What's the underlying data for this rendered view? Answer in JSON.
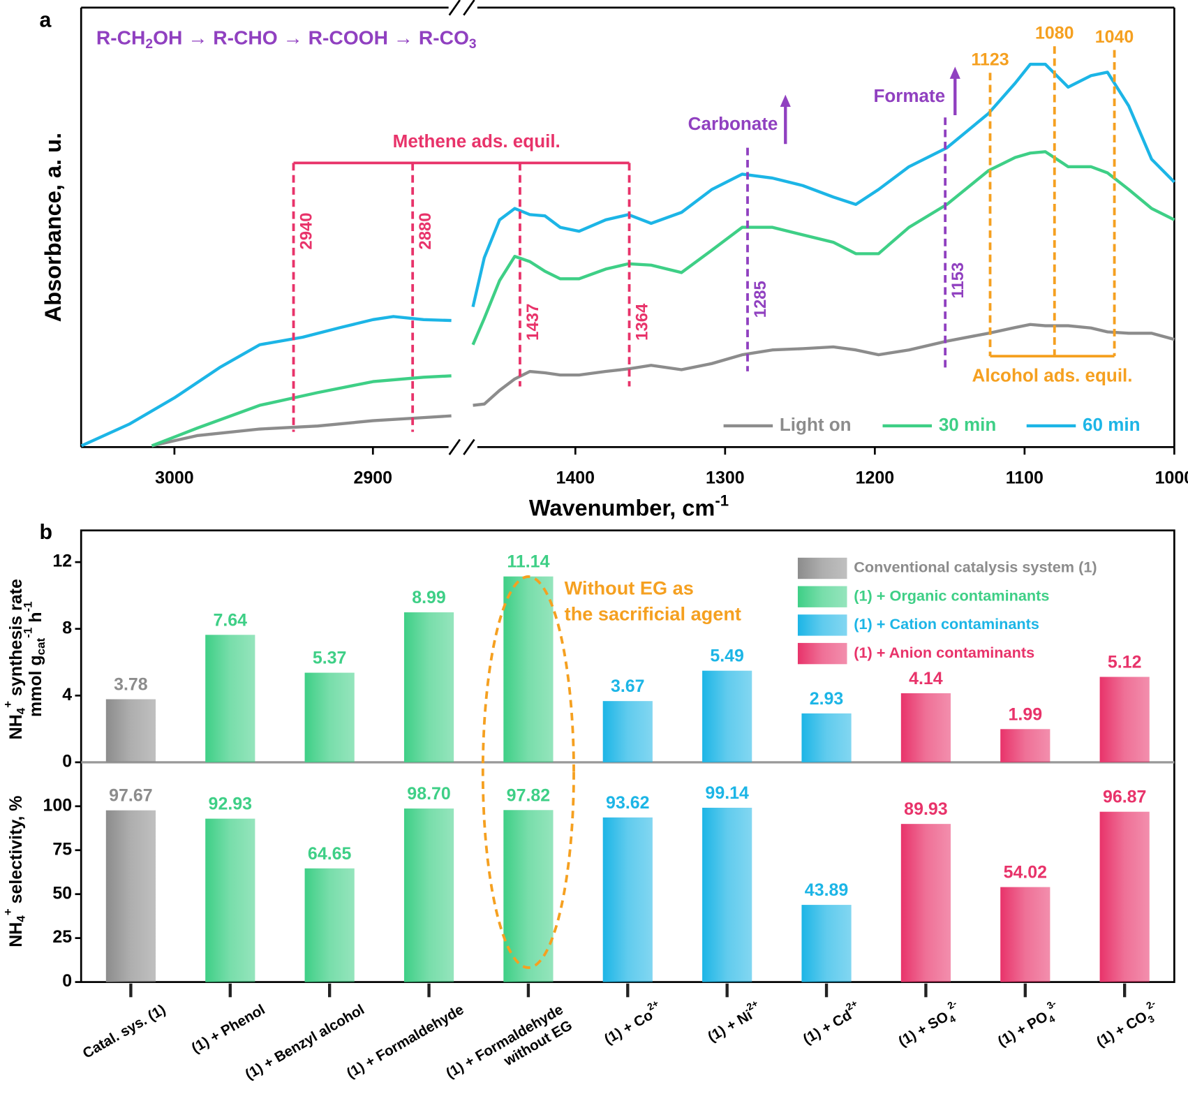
{
  "chart_data": [
    {
      "type": "line",
      "panel_label": "a",
      "reaction": [
        "R-CH",
        {
          "sub": "2"
        },
        "OH → R-CHO → R-COOH → R-CO",
        {
          "sub": "3"
        }
      ],
      "ylabel": "Absorbance, a. u.",
      "xlabel": [
        "Wavenumber, cm",
        {
          "sup": "-1"
        }
      ],
      "xlim": [
        3047,
        2860
      ],
      "ylim": [
        0,
        100
      ],
      "xticks": [
        3000,
        2900
      ],
      "bracket_label": "Methene ads. equil.",
      "vlines": [
        2940,
        2880
      ],
      "series": [
        {
          "color": "#8c8c8c",
          "x": [
            3011.4,
            2988.6,
            2957,
            2927.8,
            2900,
            2874.5,
            2860.5
          ],
          "values": [
            0.3,
            2.6,
            4.1,
            4.8,
            6.0,
            6.7,
            7.1
          ]
        },
        {
          "color": "#3ecf86",
          "x": [
            3011.4,
            2988.6,
            2957,
            2927.8,
            2900,
            2874.5,
            2860.5
          ],
          "values": [
            0.3,
            4.3,
            9.5,
            12.4,
            14.9,
            15.9,
            16.2
          ]
        },
        {
          "color": "#1cb5e6",
          "x": [
            3046.8,
            3022.8,
            3000,
            2977.2,
            2957,
            2935.4,
            2916.3,
            2900,
            2889.7,
            2874.5,
            2860.5
          ],
          "values": [
            0.3,
            5.2,
            11.2,
            18.1,
            23.3,
            25,
            27.2,
            29,
            29.7,
            29,
            28.8
          ]
        }
      ]
    },
    {
      "type": "line",
      "xlim": [
        1468,
        1000
      ],
      "ylim": [
        0,
        100
      ],
      "xticks": [
        1400,
        1300,
        1200,
        1100,
        1000
      ],
      "vlines": [
        1437,
        1364
      ],
      "vlines_purple": [
        1285,
        1153
      ],
      "purple_labels": [
        "Carbonate",
        "Formate"
      ],
      "vlines_orange": [
        1123,
        1080,
        1040
      ],
      "orange_label": "Alcohol ads. equil.",
      "legend_loc": "lower right",
      "series": [
        {
          "name": "Light on",
          "color": "#8c8c8c",
          "x": [
            1468.4,
            1460.8,
            1450.6,
            1440.5,
            1430.4,
            1420.3,
            1410.1,
            1397.5,
            1379.7,
            1364.6,
            1349.4,
            1329.1,
            1308.9,
            1288.6,
            1268.4,
            1248.1,
            1227.8,
            1212.7,
            1197.5,
            1177.2,
            1151.9,
            1124.1,
            1106.3,
            1096.2,
            1086.1,
            1070.9,
            1055.7,
            1044.6,
            1030.4,
            1015.2,
            1000
          ],
          "values": [
            9.5,
            9.8,
            12.9,
            15.5,
            17.2,
            16.9,
            16.4,
            16.4,
            17.2,
            17.8,
            18.6,
            17.6,
            19,
            21,
            22.1,
            22.4,
            22.8,
            22.1,
            21,
            22.1,
            24.1,
            25.9,
            27.2,
            27.9,
            27.6,
            27.6,
            27.1,
            26.2,
            25.9,
            25.9,
            24.5
          ]
        },
        {
          "name": "30 min",
          "color": "#3ecf86",
          "x": [
            1468.4,
            1460.8,
            1450.6,
            1440.5,
            1430.4,
            1420.3,
            1410.1,
            1397.5,
            1379.7,
            1364.6,
            1349.4,
            1329.1,
            1308.9,
            1288.6,
            1268.4,
            1248.1,
            1227.8,
            1212.7,
            1197.5,
            1177.2,
            1151.9,
            1124.1,
            1106.3,
            1096.2,
            1086.1,
            1070.9,
            1055.7,
            1044.6,
            1030.4,
            1015.2,
            1000
          ],
          "values": [
            23.3,
            29.3,
            37.9,
            43.4,
            42.2,
            40,
            38.3,
            38.3,
            40.5,
            41.7,
            41.4,
            39.7,
            44.8,
            50,
            50,
            48.3,
            46.6,
            44,
            44,
            50,
            55.2,
            62.9,
            65.9,
            66.9,
            67.2,
            63.8,
            63.8,
            62.4,
            58.6,
            54.3,
            51.7
          ]
        },
        {
          "name": "60 min",
          "color": "#1cb5e6",
          "x": [
            1468.4,
            1460.8,
            1450.6,
            1440.5,
            1430.4,
            1420.3,
            1410.1,
            1397.5,
            1379.7,
            1364.6,
            1349.4,
            1329.1,
            1308.9,
            1288.6,
            1268.4,
            1248.1,
            1227.8,
            1212.7,
            1197.5,
            1177.2,
            1151.9,
            1124.1,
            1106.3,
            1096.2,
            1086.1,
            1070.9,
            1055.7,
            1044.6,
            1030.4,
            1015.2,
            1000
          ],
          "values": [
            31.9,
            43.1,
            51.7,
            54.3,
            52.9,
            52.6,
            50,
            49.1,
            51.7,
            52.9,
            50.9,
            53.4,
            58.6,
            62.1,
            61.2,
            59.5,
            56.9,
            55.2,
            58.6,
            63.8,
            68.1,
            75.9,
            82.8,
            87.1,
            87.1,
            81.9,
            84.5,
            85.3,
            77.6,
            65.5,
            60.3
          ]
        }
      ]
    },
    {
      "type": "bar",
      "panel_label": "b",
      "ylabel": [
        "NH",
        {
          "sub": "4"
        },
        {
          "sup": "+"
        },
        " synthesis rate",
        {
          "nl": "mmol g"
        },
        {
          "sub": "cat"
        },
        {
          "sup": "-1"
        },
        " h",
        {
          "sup": "-1"
        }
      ],
      "ylim": [
        0,
        13.9
      ],
      "yticks": [
        0,
        4,
        8,
        12
      ],
      "values": [
        3.78,
        7.64,
        5.37,
        8.99,
        11.14,
        3.67,
        5.49,
        2.93,
        4.14,
        1.99,
        5.12
      ],
      "colors": [
        "#8c8c8c",
        "#3ecf86",
        "#3ecf86",
        "#3ecf86",
        "#3ecf86",
        "#1cb5e6",
        "#1cb5e6",
        "#1cb5e6",
        "#e8336a",
        "#e8336a",
        "#e8336a"
      ],
      "annotation": [
        "Without EG as",
        "the sacrificial agent"
      ],
      "legend_loc": "upper right",
      "legend": [
        {
          "name": "Conventional catalysis system (1)",
          "color": "#8c8c8c"
        },
        {
          "name": "(1) + Organic contaminants",
          "color": "#3ecf86"
        },
        {
          "name": "(1) + Cation contaminants",
          "color": "#1cb5e6"
        },
        {
          "name": "(1) + Anion contaminants",
          "color": "#e8336a"
        }
      ]
    },
    {
      "type": "bar",
      "ylabel": [
        "NH",
        {
          "sub": "4"
        },
        {
          "sup": "+"
        },
        " selectivity, %"
      ],
      "ylim": [
        0,
        125
      ],
      "yticks": [
        0,
        25,
        50,
        75,
        100
      ],
      "categories": [
        [
          "Catal. sys. (1)"
        ],
        [
          "(1) + Phenol"
        ],
        [
          "(1) + Benzyl alcohol"
        ],
        [
          "(1) + Formaldehyde"
        ],
        [
          "(1) + Formaldehyde",
          {
            "nl": "without EG"
          }
        ],
        [
          "(1) + Co",
          {
            "sup": "2+"
          }
        ],
        [
          "(1) + Ni",
          {
            "sup": "2+"
          }
        ],
        [
          "(1) + Cd",
          {
            "sup": "2+"
          }
        ],
        [
          "(1) + SO",
          {
            "sub": "4"
          },
          {
            "sup": "2-"
          }
        ],
        [
          "(1) + PO",
          {
            "sub": "4"
          },
          {
            "sup": "3-"
          }
        ],
        [
          "(1) + CO",
          {
            "sub": "3"
          },
          {
            "sup": "2-"
          }
        ]
      ],
      "values": [
        97.67,
        92.93,
        64.65,
        98.7,
        97.82,
        93.62,
        99.14,
        43.89,
        89.93,
        54.02,
        96.87
      ],
      "value_labels": [
        "97.67",
        "92.93",
        "64.65",
        "98.70",
        "97.82",
        "93.62",
        "99.14",
        "43.89",
        "89.93",
        "54.02",
        "96.87"
      ],
      "colors": [
        "#8c8c8c",
        "#3ecf86",
        "#3ecf86",
        "#3ecf86",
        "#3ecf86",
        "#1cb5e6",
        "#1cb5e6",
        "#1cb5e6",
        "#e8336a",
        "#e8336a",
        "#e8336a"
      ]
    }
  ]
}
